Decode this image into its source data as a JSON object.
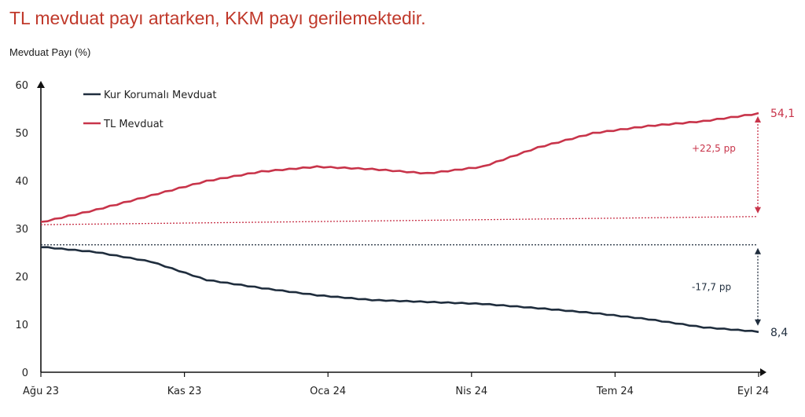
{
  "title": "TL mevduat payı artarken, KKM payı gerilemektedir.",
  "colors": {
    "title": "#c0392b",
    "tl": "#c8344a",
    "kkm": "#1f2d3d",
    "axis": "#111111"
  },
  "chart_data": {
    "type": "line",
    "ylabel": "Mevduat Payı (%)",
    "ylim": [
      0,
      60
    ],
    "yticks": [
      "0",
      "10",
      "20",
      "30",
      "40",
      "50",
      "60"
    ],
    "xticks": [
      "Ağu 23",
      "Kas 23",
      "Oca 24",
      "Nis 24",
      "Tem 24",
      "Eyl 24"
    ],
    "legend": "top-left",
    "grid": false,
    "x": [
      "Ağu 23",
      "Eyl 23",
      "Eki 23",
      "Kas 23",
      "Ara 23",
      "Oca 24",
      "Şub 24",
      "Mar 24",
      "Nis 24",
      "May 24",
      "Haz 24",
      "Tem 24",
      "Ağu 24",
      "Eyl 24"
    ],
    "series": [
      {
        "name": "Kur Korumalı Mevduat",
        "key": "kkm",
        "values": [
          26.1,
          25.0,
          23.0,
          19.2,
          17.5,
          16.0,
          15.0,
          14.6,
          14.2,
          13.3,
          12.3,
          11.0,
          9.3,
          8.4
        ]
      },
      {
        "name": "TL Mevduat",
        "key": "tl",
        "values": [
          31.4,
          34.0,
          37.0,
          40.0,
          42.0,
          43.0,
          42.5,
          41.6,
          43.0,
          47.0,
          50.0,
          51.5,
          52.5,
          54.1
        ]
      }
    ],
    "end_labels": {
      "tl": "54,1",
      "kkm": "8,4"
    },
    "annotations": {
      "tl_change": "+22,5 pp",
      "kkm_change": "-17,7 pp"
    }
  }
}
